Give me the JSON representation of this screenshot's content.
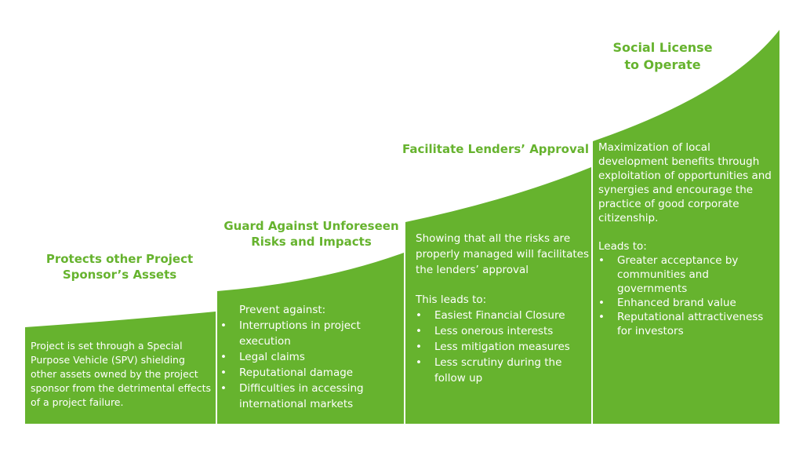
{
  "fill_color": "#66b32e",
  "steps": [
    {
      "title": "Protects other Project Sponsor’s Assets",
      "text": "Project is set through a Special Purpose Vehicle (SPV) shielding other assets owned by the project sponsor from the detrimental effects of a project failure."
    },
    {
      "title": "Guard Against Unforeseen Risks and Impacts",
      "intro": "Prevent against:",
      "bullets": [
        "Interruptions in project execution",
        "Legal claims",
        "Reputational damage",
        "Difficulties in accessing international markets"
      ]
    },
    {
      "title": "Facilitate Lenders’ Approval",
      "text": "Showing that all the risks are properly managed will facilitates the lenders’ approval",
      "intro": "This leads to:",
      "bullets": [
        "Easiest Financial Closure",
        "Less onerous interests",
        "Less mitigation measures",
        "Less scrutiny during the follow up"
      ]
    },
    {
      "title": "Social License to Operate",
      "text": "Maximization of local development benefits through exploitation of opportunities and synergies and encourage the practice of good corporate citizenship.",
      "intro": "Leads to:",
      "bullets": [
        "Greater acceptance by communities and governments",
        "Enhanced brand value",
        "Reputational attractiveness for investors"
      ]
    }
  ]
}
